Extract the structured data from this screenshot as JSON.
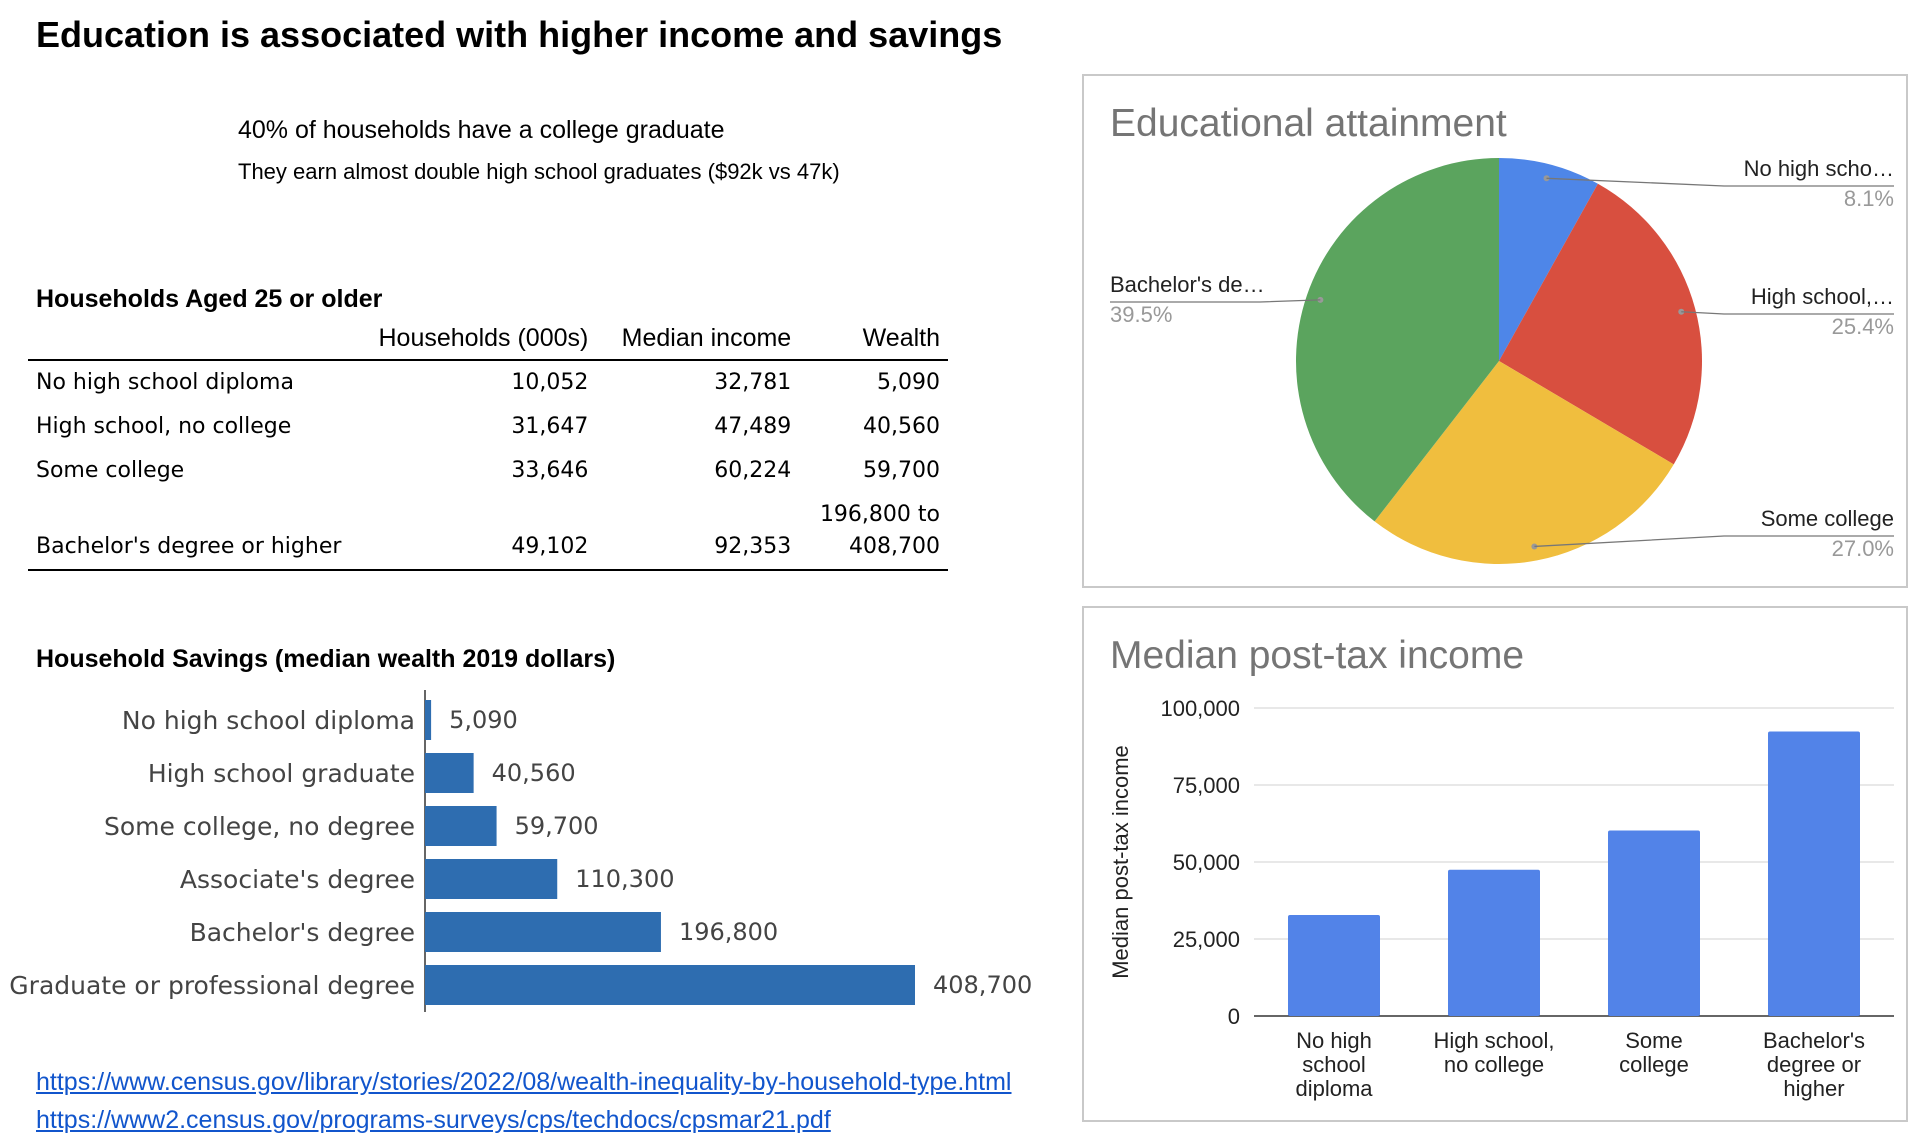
{
  "page": {
    "title": "Education is associated with higher income and savings",
    "headline": "40% of households have a college graduate",
    "subheadline": "They earn almost double high school graduates ($92k vs 47k)"
  },
  "households_table": {
    "title": "Households Aged 25 or older",
    "columns": [
      "Households (000s)",
      "Median income",
      "Wealth"
    ],
    "rows": [
      {
        "label": "No high school diploma",
        "households": "10,052",
        "income": "32,781",
        "wealth": "5,090"
      },
      {
        "label": "High school, no college",
        "households": "31,647",
        "income": "47,489",
        "wealth": "40,560"
      },
      {
        "label": "Some college",
        "households": "33,646",
        "income": "60,224",
        "wealth": "59,700"
      },
      {
        "label": "Bachelor's degree or higher",
        "households": "49,102",
        "income": "92,353",
        "wealth_line1": "196,800 to",
        "wealth_line2": "408,700"
      }
    ]
  },
  "savings": {
    "title": "Household Savings (median wealth 2019 dollars)"
  },
  "links": [
    "https://www.census.gov/library/stories/2022/08/wealth-inequality-by-household-type.html",
    "https://www2.census.gov/programs-surveys/cps/techdocs/cpsmar21.pdf"
  ],
  "colors": {
    "savings_bar": "#2e6db0",
    "income_bar": "#5283e8",
    "pie_blue": "#4e86e8",
    "pie_red": "#d84f3f",
    "pie_yellow": "#f0be3e",
    "pie_green": "#5ba45e",
    "link": "#1155cc"
  },
  "chart_data": [
    {
      "type": "bar",
      "orientation": "horizontal",
      "categories": [
        "No high school diploma",
        "High school graduate",
        "Some college, no degree",
        "Associate's degree",
        "Bachelor's degree",
        "Graduate or professional degree"
      ],
      "values": [
        5090,
        40560,
        59700,
        110300,
        196800,
        408700
      ],
      "value_labels": [
        "5,090",
        "40,560",
        "59,700",
        "110,300",
        "196,800",
        "408,700"
      ],
      "xlim": [
        0,
        408700
      ]
    },
    {
      "type": "pie",
      "title": "Educational attainment",
      "slices": [
        {
          "label": "No high scho…",
          "value": 8.1,
          "pct": "8.1%"
        },
        {
          "label": "High school,…",
          "value": 25.4,
          "pct": "25.4%"
        },
        {
          "label": "Some college",
          "value": 27.0,
          "pct": "27.0%"
        },
        {
          "label": "Bachelor's de…",
          "value": 39.5,
          "pct": "39.5%"
        }
      ]
    },
    {
      "type": "bar",
      "title": "Median post-tax income",
      "ylabel": "Median post-tax income",
      "categories": [
        [
          "No high",
          "school",
          "diploma"
        ],
        [
          "High school,",
          "no college"
        ],
        [
          "Some",
          "college"
        ],
        [
          "Bachelor's",
          "degree or",
          "higher"
        ]
      ],
      "values": [
        32781,
        47489,
        60224,
        92353
      ],
      "ylim": [
        0,
        100000
      ],
      "yticks": [
        0,
        25000,
        50000,
        75000,
        100000
      ],
      "ytick_labels": [
        "0",
        "25,000",
        "50,000",
        "75,000",
        "100,000"
      ],
      "grid": true
    }
  ]
}
